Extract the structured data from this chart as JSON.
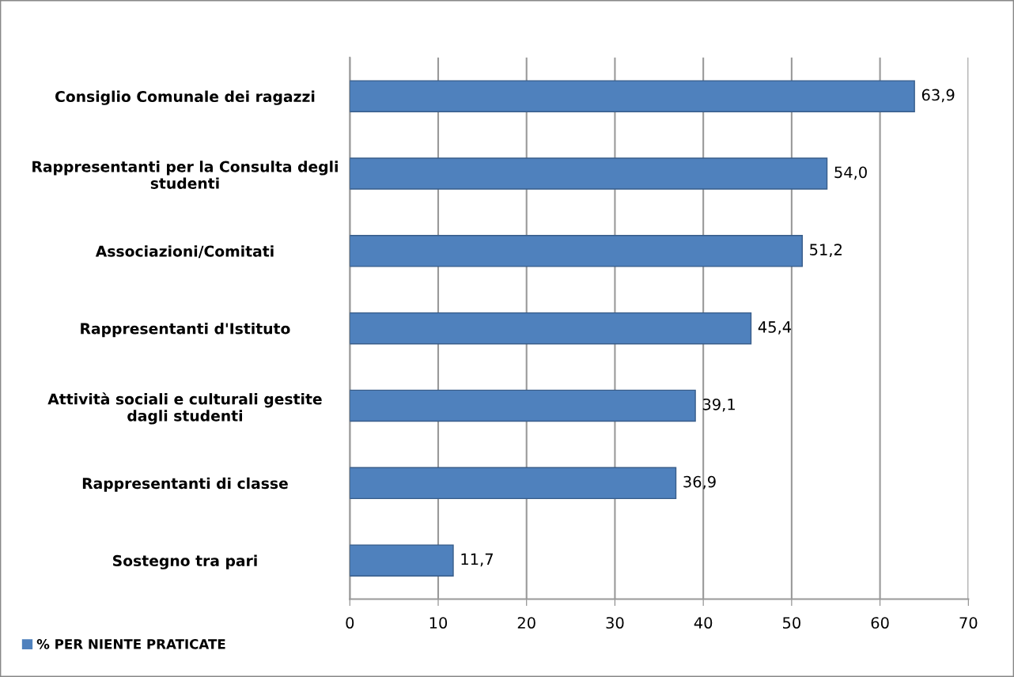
{
  "chart_data": {
    "type": "bar",
    "orientation": "horizontal",
    "categories": [
      "Consiglio Comunale dei ragazzi",
      "Rappresentanti per la Consulta degli\nstudenti",
      "Associazioni/Comitati",
      "Rappresentanti d'Istituto",
      "Attività sociali e culturali gestite\ndagli studenti",
      "Rappresentanti di classe",
      "Sostegno tra pari"
    ],
    "series": [
      {
        "name": "% PER NIENTE PRATICATE",
        "color": "#4f81bd",
        "values": [
          63.9,
          54.0,
          51.2,
          45.4,
          39.1,
          36.9,
          11.7
        ],
        "value_labels": [
          "63,9",
          "54,0",
          "51,2",
          "45,4",
          "39,1",
          "36,9",
          "11,7"
        ]
      }
    ],
    "xlim": [
      0,
      70
    ],
    "xticks": [
      0,
      10,
      20,
      30,
      40,
      50,
      60,
      70
    ],
    "grid": "x",
    "legend": "bottom left"
  }
}
